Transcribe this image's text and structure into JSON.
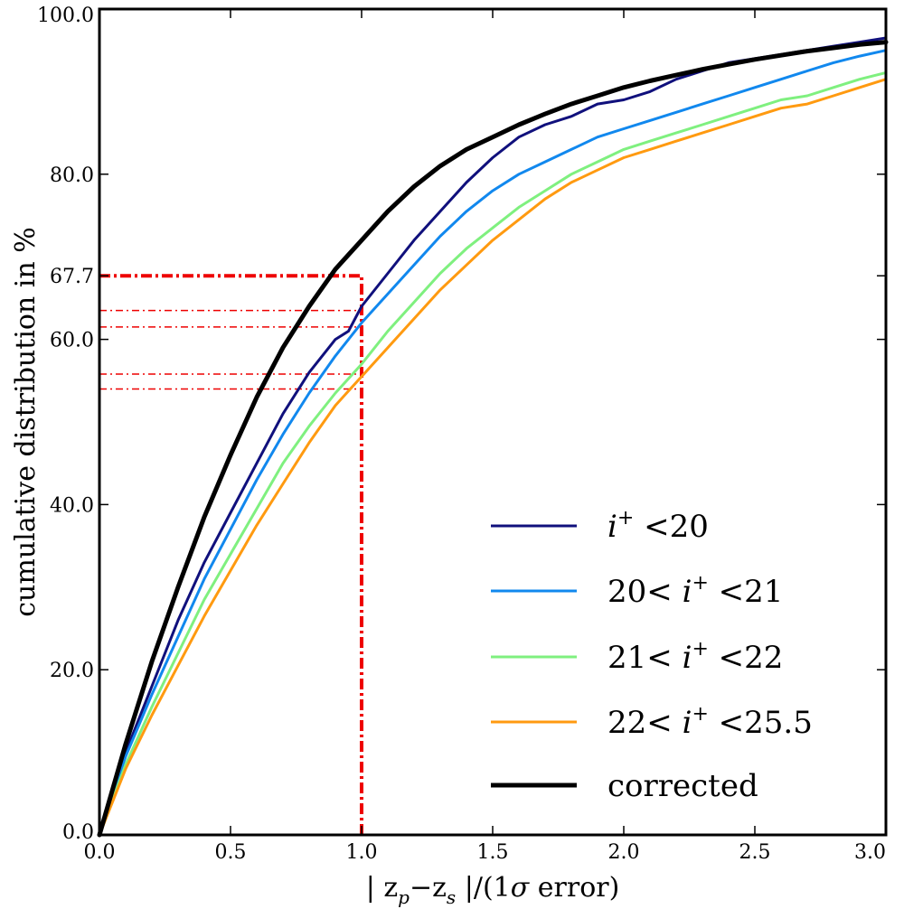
{
  "chart_data": {
    "type": "line",
    "xlabel": "| z_p − z_s |/(1σ error)",
    "xlabel_parts": [
      "| z",
      "p",
      "−z",
      "s",
      " |/(1",
      "σ",
      " error)"
    ],
    "ylabel": "cumulative distribution in %",
    "xlim": [
      0.0,
      3.0
    ],
    "ylim": [
      0.0,
      100.0
    ],
    "x_ticks": [
      0.0,
      0.5,
      1.0,
      1.5,
      2.0,
      2.5,
      3.0
    ],
    "x_tick_labels": [
      "0.0",
      "0.5",
      "1.0",
      "1.5",
      "2.0",
      "2.5",
      "3.0"
    ],
    "y_ticks": [
      0.0,
      20.0,
      40.0,
      60.0,
      67.7,
      80.0,
      100.0
    ],
    "y_tick_labels": [
      "0.0",
      "20.0",
      "40.0",
      "60.0",
      "67.7",
      "80.0",
      "100.0"
    ],
    "legend_position": "lower-right",
    "series": [
      {
        "name": "i+ <20",
        "legend_parts": [
          "i",
          "+",
          " <20"
        ],
        "color": "#10107c",
        "stroke": 3,
        "x": [
          0,
          0.1,
          0.2,
          0.3,
          0.4,
          0.5,
          0.6,
          0.7,
          0.8,
          0.9,
          0.95,
          1.0,
          1.1,
          1.2,
          1.3,
          1.4,
          1.5,
          1.6,
          1.7,
          1.8,
          1.9,
          2.0,
          2.1,
          2.2,
          2.3,
          2.4,
          2.5,
          2.6,
          2.7,
          2.8,
          2.9,
          3.0
        ],
        "y": [
          0,
          10,
          18,
          26,
          33,
          39,
          45,
          51,
          56,
          60,
          61,
          64,
          68,
          72,
          75.5,
          79,
          82,
          84.5,
          86,
          87,
          88.5,
          89,
          90,
          91.5,
          92.5,
          93.5,
          94,
          94.5,
          95,
          95.5,
          96,
          96.5
        ]
      },
      {
        "name": "20< i+ <21",
        "legend_parts": [
          "20< ",
          "i",
          "+",
          " <21"
        ],
        "color": "#1188ee",
        "stroke": 3,
        "x": [
          0,
          0.1,
          0.2,
          0.3,
          0.4,
          0.5,
          0.6,
          0.7,
          0.8,
          0.9,
          1.0,
          1.1,
          1.2,
          1.3,
          1.4,
          1.5,
          1.6,
          1.7,
          1.8,
          1.9,
          2.0,
          2.1,
          2.2,
          2.3,
          2.4,
          2.5,
          2.6,
          2.7,
          2.8,
          2.9,
          3.0
        ],
        "y": [
          0,
          9.5,
          17,
          24,
          31,
          37,
          43,
          48.5,
          53.5,
          58,
          62,
          65.5,
          69,
          72.5,
          75.5,
          78,
          80,
          81.5,
          83,
          84.5,
          85.5,
          86.5,
          87.5,
          88.5,
          89.5,
          90.5,
          91.5,
          92.5,
          93.5,
          94.3,
          95
        ]
      },
      {
        "name": "21< i+ <22",
        "legend_parts": [
          "21< ",
          "i",
          "+",
          " <22"
        ],
        "color": "#7ff07f",
        "stroke": 3,
        "x": [
          0,
          0.1,
          0.2,
          0.3,
          0.4,
          0.5,
          0.6,
          0.7,
          0.8,
          0.9,
          1.0,
          1.1,
          1.2,
          1.3,
          1.4,
          1.5,
          1.6,
          1.7,
          1.8,
          1.9,
          2.0,
          2.1,
          2.2,
          2.3,
          2.4,
          2.5,
          2.6,
          2.7,
          2.8,
          2.9,
          3.0
        ],
        "y": [
          0,
          8.5,
          15.5,
          22,
          28.5,
          34,
          39.5,
          45,
          49.5,
          53.5,
          57,
          61,
          64.5,
          68,
          71,
          73.5,
          76,
          78,
          80,
          81.5,
          83,
          84,
          85,
          86,
          87,
          88,
          89,
          89.5,
          90.5,
          91.5,
          92.3
        ]
      },
      {
        "name": "22< i+ <25.5",
        "legend_parts": [
          "22< ",
          "i",
          "+",
          " <25.5"
        ],
        "color": "#ff9a10",
        "stroke": 3,
        "x": [
          0,
          0.1,
          0.2,
          0.3,
          0.4,
          0.5,
          0.6,
          0.7,
          0.8,
          0.9,
          1.0,
          1.1,
          1.2,
          1.3,
          1.4,
          1.5,
          1.6,
          1.7,
          1.8,
          1.9,
          2.0,
          2.1,
          2.2,
          2.3,
          2.4,
          2.5,
          2.6,
          2.7,
          2.8,
          2.9,
          3.0
        ],
        "y": [
          0,
          8,
          14.5,
          20.5,
          26.5,
          32,
          37.5,
          42.5,
          47.5,
          52,
          55.5,
          59,
          62.5,
          66,
          69,
          72,
          74.5,
          77,
          79,
          80.5,
          82,
          83,
          84,
          85,
          86,
          87,
          88,
          88.5,
          89.5,
          90.5,
          91.5
        ]
      },
      {
        "name": "corrected",
        "legend_parts": [
          "corrected"
        ],
        "color": "#000000",
        "stroke": 5,
        "x": [
          0,
          0.1,
          0.2,
          0.3,
          0.4,
          0.5,
          0.6,
          0.7,
          0.8,
          0.9,
          1.0,
          1.1,
          1.2,
          1.3,
          1.4,
          1.5,
          1.6,
          1.7,
          1.8,
          1.9,
          2.0,
          2.1,
          2.2,
          2.3,
          2.4,
          2.5,
          2.6,
          2.7,
          2.8,
          2.9,
          3.0
        ],
        "y": [
          0,
          11,
          21,
          30,
          38.5,
          46,
          53,
          59,
          64,
          68.5,
          72,
          75.5,
          78.5,
          81,
          83,
          84.5,
          86,
          87.3,
          88.5,
          89.5,
          90.5,
          91.3,
          92,
          92.7,
          93.3,
          93.9,
          94.4,
          94.9,
          95.3,
          95.7,
          96
        ]
      }
    ],
    "reference_lines": {
      "color": "#ee0000",
      "x_value": 1.0,
      "thick_y": 67.7,
      "thin_y": [
        63.5,
        61.5,
        55.8,
        54.0
      ]
    }
  }
}
